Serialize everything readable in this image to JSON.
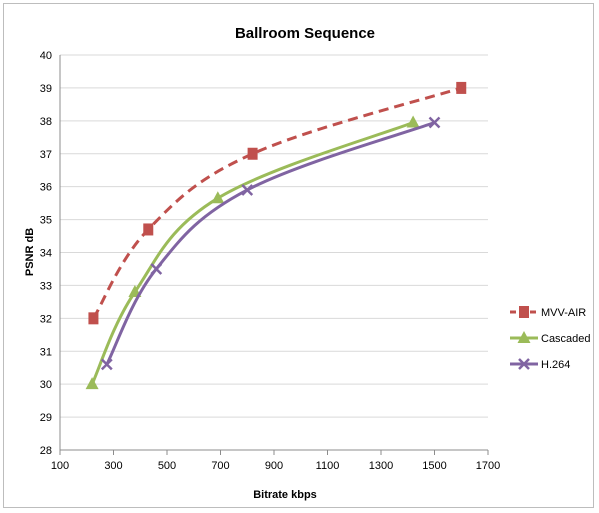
{
  "chart_data": {
    "type": "line",
    "title": "Ballroom Sequence",
    "xlabel": "Bitrate kbps",
    "ylabel": "PSNR dB",
    "xlim": [
      100,
      1700
    ],
    "ylim": [
      28,
      40
    ],
    "x_ticks": [
      "100",
      "300",
      "500",
      "700",
      "900",
      "1100",
      "1300",
      "1500",
      "1700"
    ],
    "y_ticks": [
      "28",
      "29",
      "30",
      "31",
      "32",
      "33",
      "34",
      "35",
      "36",
      "37",
      "38",
      "39",
      "40"
    ],
    "grid": "horizontal",
    "legend_position": "right",
    "series": [
      {
        "name": "MVV-AIR",
        "color": "#c0504d",
        "marker": "square",
        "line_style": "dashed",
        "x": [
          225,
          430,
          820,
          1600
        ],
        "y": [
          32.0,
          34.7,
          37.0,
          39.0
        ]
      },
      {
        "name": "Cascaded",
        "color": "#9bbb59",
        "marker": "triangle",
        "line_style": "solid",
        "x": [
          220,
          380,
          690,
          1420
        ],
        "y": [
          30.0,
          32.8,
          35.65,
          37.95
        ]
      },
      {
        "name": "H.264",
        "color": "#8064a2",
        "marker": "x",
        "line_style": "solid",
        "x": [
          275,
          460,
          800,
          1500
        ],
        "y": [
          30.6,
          33.5,
          35.9,
          37.95
        ]
      }
    ]
  }
}
